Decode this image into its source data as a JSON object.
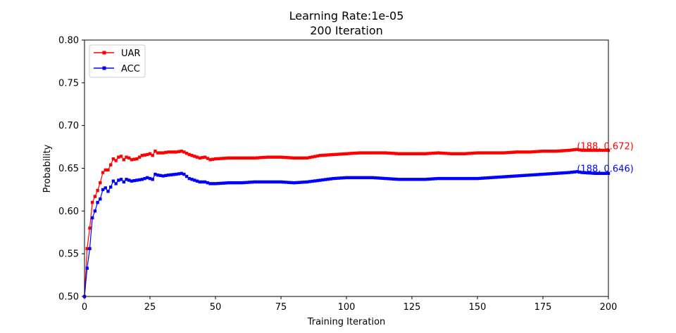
{
  "chart_data": {
    "type": "line",
    "title": "Learning Rate:1e-05",
    "subtitle": "200 Iteration",
    "xlabel": "Training Iteration",
    "ylabel": "Probability",
    "xlim": [
      0,
      200
    ],
    "ylim": [
      0.5,
      0.8
    ],
    "xticks": [
      "0",
      "25",
      "50",
      "75",
      "100",
      "125",
      "150",
      "175",
      "200"
    ],
    "yticks": [
      "0.50",
      "0.55",
      "0.60",
      "0.65",
      "0.70",
      "0.75",
      "0.80"
    ],
    "grid": false,
    "legend_position": "top-left",
    "series": [
      {
        "name": "UAR",
        "color": "#ff0000",
        "marker": "square",
        "keypoints": [
          [
            0,
            0.5
          ],
          [
            1,
            0.556
          ],
          [
            2,
            0.58
          ],
          [
            3,
            0.61
          ],
          [
            4,
            0.617
          ],
          [
            5,
            0.624
          ],
          [
            6,
            0.633
          ],
          [
            7,
            0.645
          ],
          [
            8,
            0.648
          ],
          [
            9,
            0.648
          ],
          [
            10,
            0.654
          ],
          [
            11,
            0.661
          ],
          [
            12,
            0.659
          ],
          [
            13,
            0.663
          ],
          [
            14,
            0.664
          ],
          [
            15,
            0.66
          ],
          [
            16,
            0.663
          ],
          [
            17,
            0.662
          ],
          [
            18,
            0.66
          ],
          [
            20,
            0.661
          ],
          [
            22,
            0.665
          ],
          [
            24,
            0.666
          ],
          [
            25,
            0.667
          ],
          [
            26,
            0.665
          ],
          [
            27,
            0.67
          ],
          [
            28,
            0.668
          ],
          [
            30,
            0.668
          ],
          [
            32,
            0.669
          ],
          [
            35,
            0.669
          ],
          [
            37,
            0.67
          ],
          [
            38,
            0.669
          ],
          [
            40,
            0.666
          ],
          [
            42,
            0.664
          ],
          [
            44,
            0.662
          ],
          [
            46,
            0.663
          ],
          [
            48,
            0.66
          ],
          [
            50,
            0.661
          ],
          [
            55,
            0.662
          ],
          [
            60,
            0.662
          ],
          [
            65,
            0.662
          ],
          [
            70,
            0.663
          ],
          [
            75,
            0.663
          ],
          [
            80,
            0.662
          ],
          [
            85,
            0.662
          ],
          [
            90,
            0.665
          ],
          [
            95,
            0.666
          ],
          [
            100,
            0.667
          ],
          [
            105,
            0.668
          ],
          [
            110,
            0.668
          ],
          [
            115,
            0.668
          ],
          [
            120,
            0.667
          ],
          [
            125,
            0.667
          ],
          [
            130,
            0.667
          ],
          [
            135,
            0.668
          ],
          [
            140,
            0.667
          ],
          [
            145,
            0.667
          ],
          [
            150,
            0.668
          ],
          [
            155,
            0.668
          ],
          [
            160,
            0.668
          ],
          [
            165,
            0.669
          ],
          [
            170,
            0.669
          ],
          [
            175,
            0.67
          ],
          [
            180,
            0.67
          ],
          [
            185,
            0.671
          ],
          [
            188,
            0.672
          ],
          [
            190,
            0.671
          ],
          [
            195,
            0.671
          ],
          [
            200,
            0.671
          ]
        ]
      },
      {
        "name": "ACC",
        "color": "#0000ff",
        "marker": "square",
        "keypoints": [
          [
            0,
            0.5
          ],
          [
            1,
            0.533
          ],
          [
            2,
            0.556
          ],
          [
            3,
            0.592
          ],
          [
            4,
            0.6
          ],
          [
            5,
            0.61
          ],
          [
            6,
            0.614
          ],
          [
            7,
            0.625
          ],
          [
            8,
            0.627
          ],
          [
            9,
            0.623
          ],
          [
            10,
            0.628
          ],
          [
            11,
            0.635
          ],
          [
            12,
            0.632
          ],
          [
            13,
            0.636
          ],
          [
            14,
            0.637
          ],
          [
            15,
            0.634
          ],
          [
            16,
            0.637
          ],
          [
            18,
            0.635
          ],
          [
            20,
            0.636
          ],
          [
            22,
            0.637
          ],
          [
            24,
            0.639
          ],
          [
            26,
            0.637
          ],
          [
            27,
            0.643
          ],
          [
            28,
            0.642
          ],
          [
            30,
            0.641
          ],
          [
            32,
            0.642
          ],
          [
            35,
            0.643
          ],
          [
            37,
            0.644
          ],
          [
            38,
            0.643
          ],
          [
            40,
            0.638
          ],
          [
            42,
            0.636
          ],
          [
            44,
            0.634
          ],
          [
            46,
            0.634
          ],
          [
            48,
            0.632
          ],
          [
            50,
            0.632
          ],
          [
            55,
            0.633
          ],
          [
            60,
            0.633
          ],
          [
            65,
            0.634
          ],
          [
            70,
            0.634
          ],
          [
            75,
            0.634
          ],
          [
            80,
            0.633
          ],
          [
            85,
            0.634
          ],
          [
            90,
            0.636
          ],
          [
            95,
            0.638
          ],
          [
            100,
            0.639
          ],
          [
            105,
            0.639
          ],
          [
            110,
            0.639
          ],
          [
            115,
            0.638
          ],
          [
            120,
            0.637
          ],
          [
            125,
            0.637
          ],
          [
            130,
            0.637
          ],
          [
            135,
            0.638
          ],
          [
            140,
            0.638
          ],
          [
            145,
            0.638
          ],
          [
            150,
            0.638
          ],
          [
            155,
            0.639
          ],
          [
            160,
            0.64
          ],
          [
            165,
            0.641
          ],
          [
            170,
            0.642
          ],
          [
            175,
            0.643
          ],
          [
            180,
            0.644
          ],
          [
            185,
            0.645
          ],
          [
            188,
            0.646
          ],
          [
            190,
            0.645
          ],
          [
            195,
            0.644
          ],
          [
            200,
            0.644
          ]
        ]
      }
    ],
    "annotations": [
      {
        "text": "(188, 0.672)",
        "x": 188,
        "y": 0.672,
        "color": "#ff0000"
      },
      {
        "text": "(188, 0.646)",
        "x": 188,
        "y": 0.646,
        "color": "#0000ff"
      }
    ]
  }
}
